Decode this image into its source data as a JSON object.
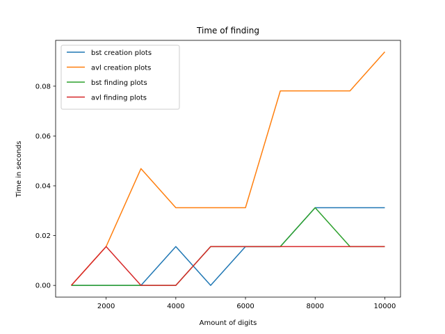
{
  "chart_data": {
    "type": "line",
    "title": "Time of finding",
    "xlabel": "Amount of digits",
    "ylabel": "Time in seconds",
    "xlim": [
      550,
      10450
    ],
    "ylim": [
      -0.0047,
      0.0984
    ],
    "xticks": [
      2000,
      4000,
      6000,
      8000,
      10000
    ],
    "xtick_labels": [
      "2000",
      "4000",
      "6000",
      "8000",
      "10000"
    ],
    "yticks": [
      0.0,
      0.02,
      0.04,
      0.06,
      0.08
    ],
    "ytick_labels": [
      "0.00",
      "0.02",
      "0.04",
      "0.06",
      "0.08"
    ],
    "grid": false,
    "legend_position": "top-left",
    "x": [
      1000,
      2000,
      3000,
      4000,
      5000,
      6000,
      7000,
      8000,
      9000,
      10000
    ],
    "series": [
      {
        "name": "bst creation plots",
        "color": "#1f77b4",
        "values": [
          0.0,
          0.0,
          0.0,
          0.0156,
          0.0,
          0.0156,
          0.0156,
          0.0312,
          0.0312,
          0.0312
        ]
      },
      {
        "name": "avl creation plots",
        "color": "#ff7f0e",
        "values": [
          0.0,
          0.0156,
          0.0469,
          0.0312,
          0.0312,
          0.0312,
          0.0781,
          0.0781,
          0.0781,
          0.0938
        ]
      },
      {
        "name": "bst finding plots",
        "color": "#2ca02c",
        "values": [
          0.0,
          0.0,
          0.0,
          0.0,
          0.0156,
          0.0156,
          0.0156,
          0.0312,
          0.0156,
          0.0156
        ]
      },
      {
        "name": "avl finding plots",
        "color": "#d62728",
        "values": [
          0.0,
          0.0156,
          0.0,
          0.0,
          0.0156,
          0.0156,
          0.0156,
          0.0156,
          0.0156,
          0.0156
        ]
      }
    ]
  }
}
